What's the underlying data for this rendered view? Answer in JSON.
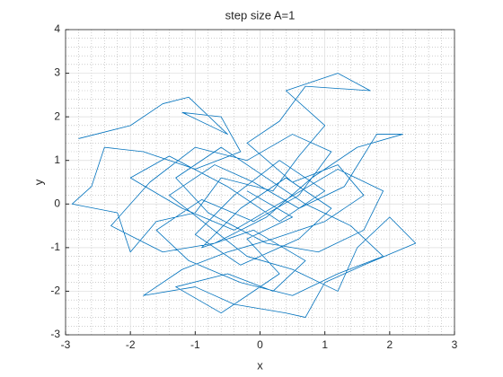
{
  "chart_data": {
    "type": "line",
    "title": "step size A=1",
    "x_label": "x",
    "y_label": "y",
    "color": "#0072bd",
    "x": [
      -2.8,
      -2.0,
      -1.5,
      -1.1,
      -0.5,
      -1.2,
      -0.6,
      -0.3,
      -1.0,
      -1.8,
      -2.4,
      -2.6,
      -2.9,
      -2.2,
      -2.0,
      -1.6,
      -1.0,
      -0.6,
      0.2,
      0.6,
      1.0,
      0.4,
      1.2,
      1.7,
      0.7,
      0.3,
      -0.2,
      0.5,
      1.2,
      1.6,
      1.0,
      0.2,
      -0.5,
      -1.2,
      -1.8,
      -1.0,
      -0.4,
      0.4,
      0.7,
      1.0,
      1.6,
      2.4,
      2.0,
      1.5,
      1.2,
      0.5,
      -0.2,
      -0.8,
      -1.4,
      -0.7,
      -0.1,
      0.6,
      1.3,
      1.8,
      2.2,
      1.5,
      0.8,
      0.1,
      -0.7,
      -1.5,
      -2.3,
      -1.7,
      -1.0,
      -0.2,
      0.5,
      1.1,
      0.6,
      -0.1,
      -0.9,
      -1.6,
      -1.1,
      -0.3,
      0.5,
      1.2,
      1.9,
      1.4,
      0.7,
      0.0,
      -0.6,
      -1.3,
      -0.8,
      0.1,
      0.9,
      1.6,
      1.9,
      1.2,
      0.4,
      -0.4,
      -1.2,
      -2.0,
      -1.4,
      -0.5,
      0.3,
      1.0,
      0.3,
      -0.4,
      -1.0,
      -0.3,
      0.6,
      1.1,
      0.4,
      -0.3,
      -0.9,
      -0.1,
      0.7,
      0.2,
      -0.5,
      -1.3,
      -0.6,
      0.3,
      -0.2,
      0.5,
      -0.2
    ],
    "values": [
      1.5,
      1.8,
      2.3,
      2.45,
      1.6,
      2.1,
      2.0,
      1.2,
      0.8,
      1.2,
      1.3,
      0.4,
      0.0,
      -0.2,
      -1.1,
      -0.4,
      -0.2,
      0.6,
      0.3,
      1.1,
      1.8,
      2.6,
      3.0,
      2.6,
      2.7,
      1.9,
      1.4,
      0.5,
      0.9,
      0.2,
      -0.4,
      -0.8,
      -1.1,
      -1.5,
      -2.1,
      -1.9,
      -2.3,
      -2.5,
      -2.6,
      -1.8,
      -1.4,
      -0.9,
      -0.3,
      -1.0,
      -2.0,
      -1.5,
      -1.2,
      -0.5,
      0.2,
      0.9,
      0.5,
      -0.1,
      0.4,
      1.6,
      1.6,
      1.3,
      0.6,
      -0.3,
      -0.9,
      -1.1,
      -0.5,
      0.5,
      1.3,
      1.0,
      1.6,
      1.2,
      0.2,
      -0.4,
      0.1,
      -0.6,
      -1.3,
      -1.8,
      -2.1,
      -1.6,
      -1.2,
      -0.5,
      0.0,
      0.7,
      1.3,
      0.6,
      -0.2,
      -0.9,
      -1.1,
      -0.6,
      0.3,
      0.8,
      0.1,
      -0.6,
      -0.1,
      0.6,
      1.1,
      0.4,
      -0.4,
      0.3,
      1.0,
      0.2,
      -0.7,
      -1.4,
      -0.8,
      -0.1,
      0.6,
      -0.1,
      -1.0,
      -0.6,
      -1.3,
      -2.0,
      -1.6,
      -1.9,
      -2.5,
      -1.6,
      -0.8,
      -0.3,
      0.3
    ],
    "xlim": [
      -3,
      3
    ],
    "xticks": [
      -3,
      -2,
      -1,
      0,
      1,
      2,
      3
    ],
    "ylim": [
      -3,
      4
    ],
    "yticks": [
      -3,
      -2,
      -1,
      0,
      1,
      2,
      3,
      4
    ],
    "grid": true,
    "minor_grid": true
  }
}
